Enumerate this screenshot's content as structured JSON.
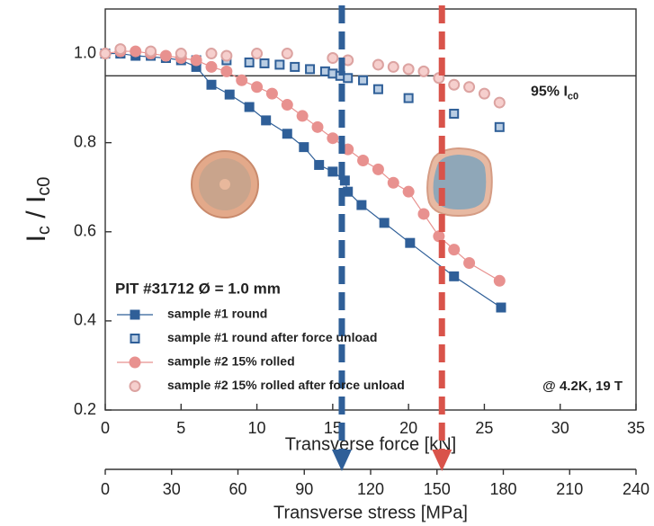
{
  "chart_data": {
    "type": "scatter",
    "x_label": "Transverse force [kN]",
    "y_label": [
      "I",
      "c",
      " / I",
      "c0"
    ],
    "xlim": [
      0,
      35
    ],
    "xticks": [
      0,
      5,
      10,
      15,
      20,
      25,
      30,
      35
    ],
    "ylim": [
      0.2,
      1.1
    ],
    "yticks": [
      {
        "value": 0.2,
        "label": "0.2"
      },
      {
        "value": 0.4,
        "label": "0.4"
      },
      {
        "value": 0.6,
        "label": "0.6"
      },
      {
        "value": 0.8,
        "label": "0.8"
      },
      {
        "value": 1.0,
        "label": "1.0"
      }
    ],
    "x2_label": "Transverse stress [MPa]",
    "x2lim": [
      0,
      240
    ],
    "x2ticks": [
      0,
      30,
      60,
      90,
      120,
      150,
      180,
      210,
      240
    ],
    "legend_title": "PIT #31712 Ø = 1.0 mm",
    "legend": "lower-left",
    "annotation": "@ 4.2K, 19 T",
    "threshold": {
      "value": 0.95,
      "label": [
        "95% I",
        "c0"
      ],
      "color": "#333333"
    },
    "markers": [
      {
        "x": 15.6,
        "color": "#2f5f98"
      },
      {
        "x": 22.2,
        "color": "#d9534a"
      }
    ],
    "series": [
      {
        "name": "sample #1 round",
        "color": "#2f5f98",
        "marker": "square",
        "filled": true,
        "line": true,
        "x": [
          0,
          1,
          2,
          4,
          5,
          6,
          7,
          8.2,
          9.5,
          10.6,
          12,
          13.1,
          14.1,
          15,
          15.8,
          16,
          16.9,
          18.4,
          20.1,
          23,
          26.1
        ],
        "values": [
          1.0,
          1.0,
          0.995,
          0.99,
          0.985,
          0.97,
          0.93,
          0.908,
          0.88,
          0.85,
          0.82,
          0.79,
          0.75,
          0.735,
          0.715,
          0.69,
          0.66,
          0.62,
          0.575,
          0.5,
          0.43
        ]
      },
      {
        "name": "sample #1 round after force unload",
        "color": "#2f5f98",
        "marker": "square",
        "filled": false,
        "line": false,
        "x": [
          0,
          1,
          3,
          4,
          6,
          8,
          9.5,
          10.5,
          11.5,
          12.5,
          13.5,
          14.5,
          15,
          15.5,
          16,
          17,
          18,
          20,
          23,
          26
        ],
        "values": [
          1.0,
          1.0,
          0.995,
          0.99,
          0.985,
          0.985,
          0.98,
          0.978,
          0.975,
          0.97,
          0.965,
          0.96,
          0.955,
          0.95,
          0.945,
          0.94,
          0.92,
          0.9,
          0.865,
          0.835
        ]
      },
      {
        "name": "sample #2 15% rolled",
        "color": "#e8918f",
        "marker": "circle",
        "filled": true,
        "line": true,
        "x": [
          0,
          1,
          2,
          3,
          4,
          5,
          6,
          7,
          8,
          9,
          10,
          11,
          12,
          13,
          14,
          15,
          16,
          17,
          18,
          19,
          20,
          21,
          22,
          23,
          24,
          26
        ],
        "values": [
          1.0,
          1.005,
          1.005,
          1.0,
          0.995,
          0.99,
          0.985,
          0.97,
          0.96,
          0.94,
          0.925,
          0.91,
          0.885,
          0.86,
          0.835,
          0.81,
          0.785,
          0.76,
          0.74,
          0.71,
          0.69,
          0.64,
          0.59,
          0.56,
          0.53,
          0.49
        ]
      },
      {
        "name": "sample #2 15% rolled after force unload",
        "color": "#e8918f",
        "marker": "circle",
        "filled": false,
        "line": false,
        "x": [
          0,
          1,
          3,
          5,
          7,
          8,
          10,
          12,
          15,
          16,
          18,
          19,
          20,
          21,
          22,
          23,
          24,
          25,
          26
        ],
        "values": [
          1.0,
          1.01,
          1.005,
          1.0,
          1.0,
          0.995,
          1.0,
          1.0,
          0.99,
          0.985,
          0.975,
          0.97,
          0.965,
          0.96,
          0.945,
          0.93,
          0.925,
          0.91,
          0.89
        ]
      }
    ]
  }
}
